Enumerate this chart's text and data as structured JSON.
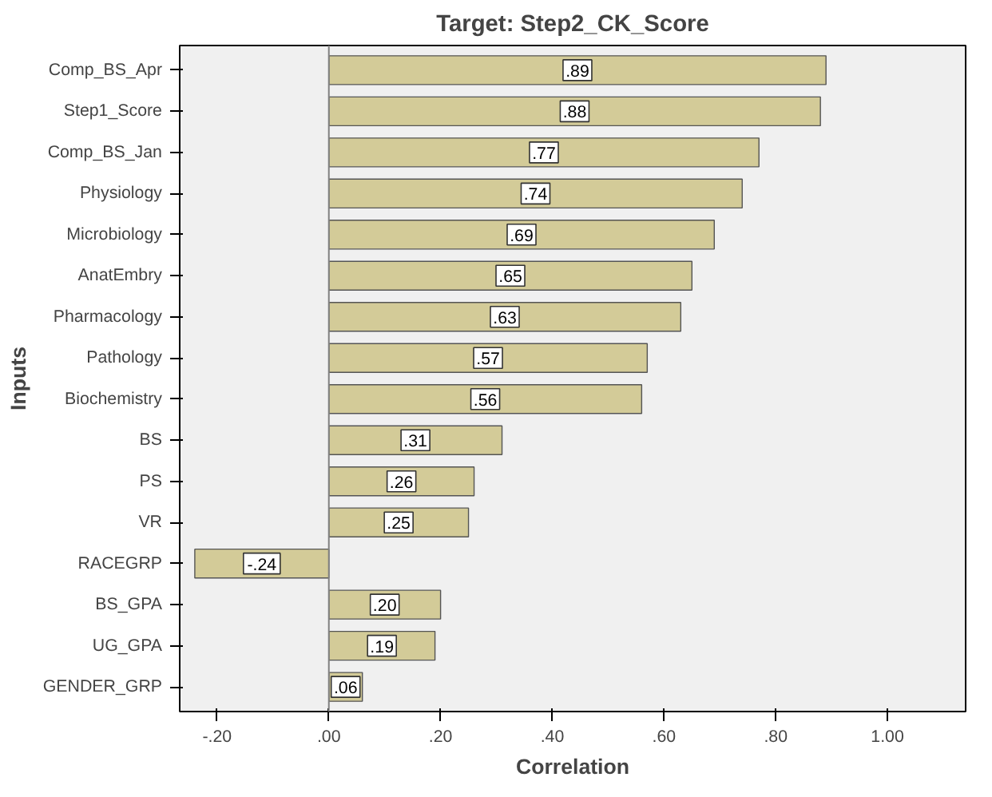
{
  "chart_data": {
    "type": "bar",
    "orientation": "horizontal",
    "title": "Target: Step2_CK_Score",
    "xlabel": "Correlation",
    "ylabel": "Inputs",
    "categories": [
      "Comp_BS_Apr",
      "Step1_Score",
      "Comp_BS_Jan",
      "Physiology",
      "Microbiology",
      "AnatEmbry",
      "Pharmacology",
      "Pathology",
      "Biochemistry",
      "BS",
      "PS",
      "VR",
      "RACEGRP",
      "BS_GPA",
      "UG_GPA",
      "GENDER_GRP"
    ],
    "values": [
      0.89,
      0.88,
      0.77,
      0.74,
      0.69,
      0.65,
      0.63,
      0.57,
      0.56,
      0.31,
      0.26,
      0.25,
      -0.24,
      0.2,
      0.19,
      0.06
    ],
    "value_labels": [
      ".89",
      ".88",
      ".77",
      ".74",
      ".69",
      ".65",
      ".63",
      ".57",
      ".56",
      ".31",
      ".26",
      ".25",
      "-.24",
      ".20",
      ".19",
      ".06"
    ],
    "color": "#d3cb98",
    "xlim": [
      -0.267,
      1.14
    ],
    "xticks": [
      {
        "value": -0.2,
        "label": "-.20"
      },
      {
        "value": 0,
        "label": ".00"
      },
      {
        "value": 0.2,
        "label": ".20"
      },
      {
        "value": 0.4,
        "label": ".40"
      },
      {
        "value": 0.6,
        "label": ".60"
      },
      {
        "value": 0.8,
        "label": ".80"
      },
      {
        "value": 1.0,
        "label": "1.00"
      }
    ],
    "ref_lines": [
      {
        "axis": "x",
        "value": 0,
        "color": "#808080"
      }
    ],
    "grid": false
  }
}
